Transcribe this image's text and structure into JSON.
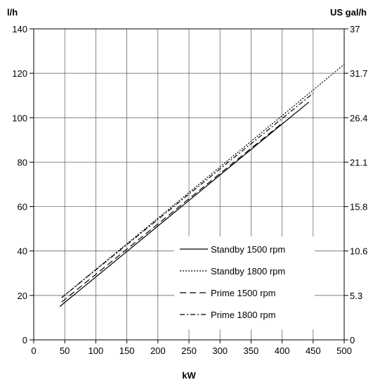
{
  "chart_data": {
    "type": "line",
    "xlabel": "kW",
    "ylabel_left": "l/h",
    "ylabel_right": "US gal/h",
    "xlim": [
      0,
      500
    ],
    "ylim": [
      0,
      140
    ],
    "x_ticks": [
      0,
      50,
      100,
      150,
      200,
      250,
      300,
      350,
      400,
      450,
      500
    ],
    "y_ticks_left": [
      0,
      20,
      40,
      60,
      80,
      100,
      120,
      140
    ],
    "y_ticks_right": [
      "0",
      "5.3",
      "10.6",
      "15.8",
      "21.1",
      "26.4",
      "31.7",
      "37"
    ],
    "grid": true,
    "legend_position": "bottom-right",
    "series": [
      {
        "name": "Standby 1500 rpm",
        "style": "solid",
        "x": [
          42,
          443
        ],
        "y": [
          15,
          107
        ]
      },
      {
        "name": "Standby 1800 rpm",
        "style": "dotted",
        "x": [
          45,
          500
        ],
        "y": [
          19,
          124
        ]
      },
      {
        "name": "Prime 1500 rpm",
        "style": "dashed",
        "x": [
          45,
          402
        ],
        "y": [
          17,
          98
        ]
      },
      {
        "name": "Prime 1800 rpm",
        "style": "dashdot",
        "x": [
          45,
          450
        ],
        "y": [
          19,
          111
        ]
      }
    ]
  }
}
